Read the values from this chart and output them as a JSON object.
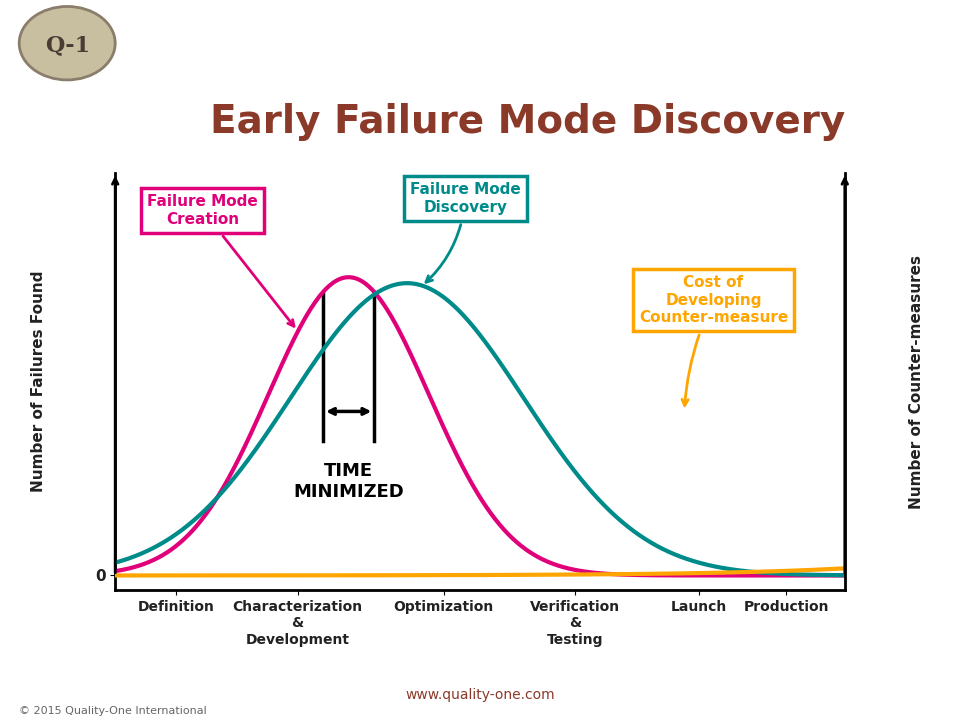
{
  "title": "Early Failure Mode Discovery",
  "title_color": "#8B3A2A",
  "title_fontsize": 28,
  "bg_color": "#FFFFFF",
  "header_color": "#4A3B35",
  "ylabel_left": "Number of Failures Found",
  "ylabel_right": "Number of Counter-measures",
  "x_labels": [
    "Definition",
    "Characterization\n&\nDevelopment",
    "Optimization",
    "Verification\n&\nTesting",
    "Launch",
    "Production"
  ],
  "curve_creation_color": "#E0007A",
  "curve_discovery_color": "#008B8B",
  "curve_cost_color": "#FFA500",
  "annotation_creation_color": "#E0007A",
  "annotation_discovery_color": "#008B8B",
  "annotation_cost_color": "#FFA500",
  "time_minimized_text": "TIME\nMINIMIZED",
  "website": "www.quality-one.com",
  "copyright": "© 2015 Quality-One International"
}
